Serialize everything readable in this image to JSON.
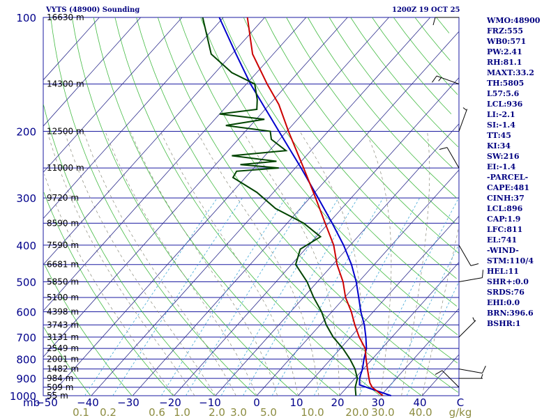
{
  "header": {
    "station": "VYTS (48900) Sounding",
    "valid_time": "1200Z 19 OCT 25"
  },
  "colors": {
    "isobar": "#1a1aa0",
    "isotherm": "#2b2b8c",
    "dry_adiabat": "#44bb44",
    "moist_adiabat": "#8a8a7a",
    "mixing_ratio": "#3fa7d6",
    "temperature": "#cc0000",
    "dewpoint": "#004400",
    "parcel": "#0000cc",
    "axis_text": "#00008b",
    "mixing_ratio_text": "#8c8c40",
    "panel_text": "#000080"
  },
  "chart_data": {
    "type": "skew-t",
    "y_axis": {
      "label": "mb",
      "scale": "log",
      "range": [
        1000,
        100
      ],
      "pressure_ticks": [
        "100",
        "200",
        "300",
        "400",
        "500",
        "600",
        "700",
        "800",
        "900",
        "1000"
      ]
    },
    "x_axis": {
      "temperature_ticks": [
        "−50",
        "−40",
        "−30",
        "−20",
        "−10",
        "0",
        "10",
        "20",
        "30",
        "40",
        "C"
      ],
      "mixing_ratio_ticks": [
        "0.1",
        "0.2",
        "0.6",
        "1.0",
        "2.0",
        "3.0",
        "5.0",
        "10.0",
        "20.0",
        "30.0",
        "40.0",
        "g/kg"
      ]
    },
    "height_labels": [
      {
        "p": 100,
        "text": "16630 m"
      },
      {
        "p": 150,
        "text": "14300 m"
      },
      {
        "p": 200,
        "text": "12500 m"
      },
      {
        "p": 250,
        "text": "11000 m"
      },
      {
        "p": 300,
        "text": "9720 m"
      },
      {
        "p": 350,
        "text": "8590 m"
      },
      {
        "p": 400,
        "text": "7590 m"
      },
      {
        "p": 450,
        "text": "6681 m"
      },
      {
        "p": 500,
        "text": "5850 m"
      },
      {
        "p": 550,
        "text": "5100 m"
      },
      {
        "p": 600,
        "text": "4398 m"
      },
      {
        "p": 650,
        "text": "3743 m"
      },
      {
        "p": 700,
        "text": "3131 m"
      },
      {
        "p": 750,
        "text": "2549 m"
      },
      {
        "p": 800,
        "text": "2001 m"
      },
      {
        "p": 850,
        "text": "1482 m"
      },
      {
        "p": 900,
        "text": "984 m"
      },
      {
        "p": 950,
        "text": "509 m"
      },
      {
        "p": 1000,
        "text": "55 m"
      }
    ],
    "temperature": [
      {
        "p": 1000,
        "t": 30.5
      },
      {
        "p": 975,
        "t": 28.3
      },
      {
        "p": 950,
        "t": 26.1
      },
      {
        "p": 925,
        "t": 24.6
      },
      {
        "p": 900,
        "t": 23.4
      },
      {
        "p": 850,
        "t": 21.0
      },
      {
        "p": 800,
        "t": 18.5
      },
      {
        "p": 750,
        "t": 16.0
      },
      {
        "p": 700,
        "t": 12.1
      },
      {
        "p": 650,
        "t": 8.4
      },
      {
        "p": 600,
        "t": 4.7
      },
      {
        "p": 550,
        "t": 0.2
      },
      {
        "p": 500,
        "t": -3.8
      },
      {
        "p": 450,
        "t": -9.0
      },
      {
        "p": 400,
        "t": -14.0
      },
      {
        "p": 350,
        "t": -20.8
      },
      {
        "p": 300,
        "t": -28.6
      },
      {
        "p": 250,
        "t": -38.0
      },
      {
        "p": 200,
        "t": -49.6
      },
      {
        "p": 170,
        "t": -57.7
      },
      {
        "p": 150,
        "t": -65.0
      },
      {
        "p": 125,
        "t": -75.0
      },
      {
        "p": 100,
        "t": -84.2
      }
    ],
    "dewpoint": [
      {
        "p": 1000,
        "t": 24.0
      },
      {
        "p": 950,
        "t": 22.0
      },
      {
        "p": 900,
        "t": 20.6
      },
      {
        "p": 850,
        "t": 18.0
      },
      {
        "p": 800,
        "t": 14.6
      },
      {
        "p": 750,
        "t": 10.6
      },
      {
        "p": 700,
        "t": 5.8
      },
      {
        "p": 650,
        "t": 1.5
      },
      {
        "p": 600,
        "t": -2.5
      },
      {
        "p": 550,
        "t": -7.5
      },
      {
        "p": 500,
        "t": -12.5
      },
      {
        "p": 450,
        "t": -19.0
      },
      {
        "p": 410,
        "t": -21.2
      },
      {
        "p": 380,
        "t": -19.0
      },
      {
        "p": 350,
        "t": -26.0
      },
      {
        "p": 320,
        "t": -36.0
      },
      {
        "p": 290,
        "t": -44.0
      },
      {
        "p": 265,
        "t": -53.0
      },
      {
        "p": 255,
        "t": -53.5
      },
      {
        "p": 250,
        "t": -44.0
      },
      {
        "p": 245,
        "t": -54.0
      },
      {
        "p": 240,
        "t": -46.0
      },
      {
        "p": 232,
        "t": -58.0
      },
      {
        "p": 225,
        "t": -46.0
      },
      {
        "p": 210,
        "t": -52.0
      },
      {
        "p": 200,
        "t": -54.0
      },
      {
        "p": 193,
        "t": -66.0
      },
      {
        "p": 186,
        "t": -58.0
      },
      {
        "p": 180,
        "t": -70.0
      },
      {
        "p": 175,
        "t": -62.0
      },
      {
        "p": 165,
        "t": -64.0
      },
      {
        "p": 150,
        "t": -68.0
      },
      {
        "p": 140,
        "t": -76.0
      },
      {
        "p": 125,
        "t": -85.0
      },
      {
        "p": 100,
        "t": -95.0
      }
    ],
    "parcel": [
      {
        "p": 1000,
        "t": 32.5
      },
      {
        "p": 936,
        "t": 22.5
      },
      {
        "p": 896,
        "t": 21.0
      },
      {
        "p": 850,
        "t": 19.8
      },
      {
        "p": 800,
        "t": 18.0
      },
      {
        "p": 750,
        "t": 16.3
      },
      {
        "p": 700,
        "t": 13.7
      },
      {
        "p": 650,
        "t": 10.7
      },
      {
        "p": 600,
        "t": 7.0
      },
      {
        "p": 550,
        "t": 3.4
      },
      {
        "p": 500,
        "t": -0.6
      },
      {
        "p": 450,
        "t": -5.5
      },
      {
        "p": 400,
        "t": -11.6
      },
      {
        "p": 350,
        "t": -19.1
      },
      {
        "p": 300,
        "t": -28.0
      },
      {
        "p": 250,
        "t": -38.6
      },
      {
        "p": 200,
        "t": -51.9
      },
      {
        "p": 150,
        "t": -69.0
      },
      {
        "p": 125,
        "t": -79.0
      },
      {
        "p": 100,
        "t": -91.0
      }
    ],
    "wind_barbs": [
      {
        "p": 100,
        "dir": 270,
        "kt": 10
      },
      {
        "p": 150,
        "dir": 290,
        "kt": 15
      },
      {
        "p": 200,
        "dir": 20,
        "kt": 5
      },
      {
        "p": 250,
        "dir": 330,
        "kt": 10
      },
      {
        "p": 400,
        "dir": 150,
        "kt": 10
      },
      {
        "p": 500,
        "dir": 80,
        "kt": 10
      },
      {
        "p": 700,
        "dir": 45,
        "kt": 5
      },
      {
        "p": 850,
        "dir": 100,
        "kt": 10
      },
      {
        "p": 900,
        "dir": 90,
        "kt": 5
      },
      {
        "p": 950,
        "dir": 315,
        "kt": 10
      }
    ]
  },
  "indices": [
    "WMO:48900",
    "FRZ:555",
    "WB0:571",
    "PW:2.41",
    "RH:81.1",
    "MAXT:33.2",
    "TH:5805",
    "L57:5.6",
    "LCL:936",
    "LI:-2.1",
    "SI:-1.4",
    "TT:45",
    "KI:34",
    "SW:216",
    "EI:-1.4",
    "-PARCEL-",
    "CAPE:481",
    "CINH:37",
    "LCL:896",
    "CAP:1.9",
    "LFC:811",
    "EL:741",
    "-WIND-",
    "STM:110/4",
    "HEL:11",
    "SHR+:0.0",
    "SRDS:76",
    "EHI:0.0",
    "BRN:396.6",
    "BSHR:1"
  ]
}
